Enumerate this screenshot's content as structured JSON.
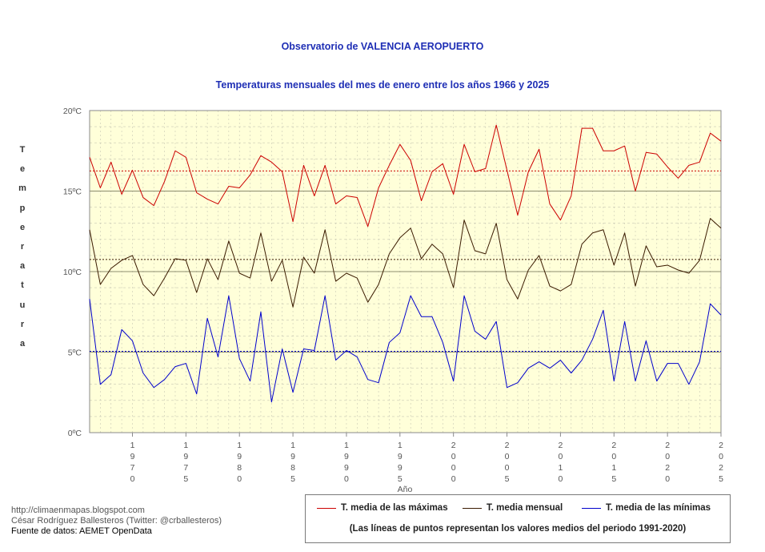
{
  "chart_data": {
    "type": "line",
    "title": "Observatorio de VALENCIA AEROPUERTO",
    "subtitle": "Temperaturas mensuales del mes de enero entre los años 1966 y 2025",
    "xlabel": "Año",
    "ylabel": "Temperatura",
    "ylim": [
      0,
      20
    ],
    "xlim": [
      1966,
      2025
    ],
    "y_ticks": [
      "0ºC",
      "5ºC",
      "10ºC",
      "15ºC",
      "20ºC"
    ],
    "y_tick_values": [
      0,
      5,
      10,
      15,
      20
    ],
    "x_tick_values": [
      1970,
      1975,
      1980,
      1985,
      1990,
      1995,
      2000,
      2005,
      2010,
      2015,
      2020,
      2025
    ],
    "x": [
      1966,
      1967,
      1968,
      1969,
      1970,
      1971,
      1972,
      1973,
      1974,
      1975,
      1976,
      1977,
      1978,
      1979,
      1980,
      1981,
      1982,
      1983,
      1984,
      1985,
      1986,
      1987,
      1988,
      1989,
      1990,
      1991,
      1992,
      1993,
      1994,
      1995,
      1996,
      1997,
      1998,
      1999,
      2000,
      2001,
      2002,
      2003,
      2004,
      2005,
      2006,
      2007,
      2008,
      2009,
      2010,
      2011,
      2012,
      2013,
      2014,
      2015,
      2016,
      2017,
      2018,
      2019,
      2020,
      2021,
      2022,
      2023,
      2024,
      2025
    ],
    "series": [
      {
        "name": "T. media de las máximas",
        "color": "#cc0000",
        "values": [
          17.1,
          15.2,
          16.8,
          14.8,
          16.3,
          14.6,
          14.1,
          15.6,
          17.5,
          17.1,
          14.9,
          14.5,
          14.2,
          15.3,
          15.2,
          16.0,
          17.2,
          16.8,
          16.2,
          13.1,
          16.6,
          14.7,
          16.6,
          14.2,
          14.7,
          14.6,
          12.8,
          15.2,
          16.6,
          17.9,
          16.9,
          14.4,
          16.2,
          16.7,
          14.8,
          17.9,
          16.2,
          16.4,
          19.1,
          16.3,
          13.5,
          16.2,
          17.6,
          14.2,
          13.2,
          14.7,
          18.9,
          18.9,
          17.5,
          17.5,
          17.8,
          15.0,
          17.4,
          17.3,
          16.5,
          15.8,
          16.6,
          16.8,
          18.6,
          18.1
        ],
        "mean_1991_2020": 16.25
      },
      {
        "name": "T. media mensual",
        "color": "#3a1a00",
        "values": [
          12.6,
          9.2,
          10.2,
          10.7,
          11.0,
          9.2,
          8.5,
          9.6,
          10.8,
          10.7,
          8.7,
          10.8,
          9.5,
          11.9,
          9.9,
          9.6,
          12.4,
          9.4,
          10.7,
          7.8,
          10.9,
          9.9,
          12.6,
          9.4,
          9.9,
          9.6,
          8.1,
          9.2,
          11.1,
          12.1,
          12.7,
          10.8,
          11.7,
          11.1,
          9.0,
          13.2,
          11.3,
          11.1,
          13.0,
          9.5,
          8.3,
          10.1,
          11.0,
          9.1,
          8.8,
          9.2,
          11.7,
          12.4,
          12.6,
          10.4,
          12.4,
          9.1,
          11.6,
          10.3,
          10.4,
          10.1,
          9.9,
          10.7,
          13.3,
          12.7
        ],
        "mean_1991_2020": 10.75
      },
      {
        "name": "T. media de las mínimas",
        "color": "#0000cc",
        "values": [
          8.3,
          3.0,
          3.6,
          6.4,
          5.7,
          3.7,
          2.8,
          3.3,
          4.1,
          4.3,
          2.4,
          7.1,
          4.7,
          8.5,
          4.6,
          3.2,
          7.5,
          1.9,
          5.2,
          2.5,
          5.2,
          5.1,
          8.5,
          4.5,
          5.1,
          4.7,
          3.3,
          3.1,
          5.6,
          6.2,
          8.5,
          7.2,
          7.2,
          5.6,
          3.2,
          8.5,
          6.3,
          5.8,
          6.9,
          2.8,
          3.1,
          4.0,
          4.4,
          4.0,
          4.5,
          3.7,
          4.5,
          5.8,
          7.6,
          3.2,
          6.9,
          3.2,
          5.7,
          3.2,
          4.3,
          4.3,
          3.0,
          4.4,
          8.0,
          7.3
        ],
        "mean_1991_2020": 5.05
      }
    ],
    "legend_note": "(Las líneas de puntos representan los valores medios del periodo 1991-2020)",
    "grid": true
  },
  "ylabel_letters": [
    "T",
    "e",
    "m",
    "p",
    "e",
    "r",
    "a",
    "t",
    "u",
    "r",
    "a"
  ],
  "credits": {
    "blog": "http://climaenmapas.blogspot.com",
    "author": "César Rodríguez Ballesteros (Twitter: @crballesteros)",
    "source": "Fuente de datos: AEMET OpenData"
  }
}
